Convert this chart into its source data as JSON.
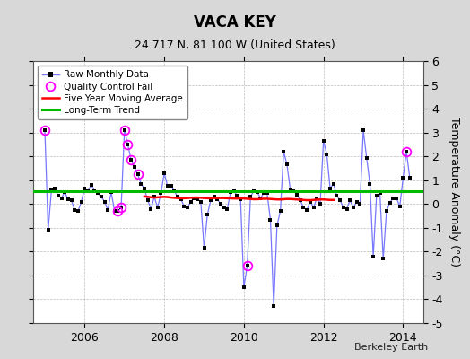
{
  "title": "VACA KEY",
  "subtitle": "24.717 N, 81.100 W (United States)",
  "ylabel": "Temperature Anomaly (°C)",
  "credit": "Berkeley Earth",
  "ylim": [
    -5,
    6
  ],
  "yticks": [
    -5,
    -4,
    -3,
    -2,
    -1,
    0,
    1,
    2,
    3,
    4,
    5,
    6
  ],
  "xlim_start": 2004.7,
  "xlim_end": 2014.5,
  "bg_color": "#d8d8d8",
  "plot_bg_color": "#ffffff",
  "raw_line_color": "#7777ff",
  "raw_marker_color": "#000000",
  "qc_fail_color": "#ff00ff",
  "moving_avg_color": "#ff0000",
  "trend_color": "#00bb00",
  "raw_data": [
    [
      2005.0,
      3.1
    ],
    [
      2005.083,
      -1.1
    ],
    [
      2005.167,
      0.6
    ],
    [
      2005.25,
      0.65
    ],
    [
      2005.333,
      0.35
    ],
    [
      2005.417,
      0.25
    ],
    [
      2005.5,
      0.5
    ],
    [
      2005.583,
      0.2
    ],
    [
      2005.667,
      0.15
    ],
    [
      2005.75,
      -0.25
    ],
    [
      2005.833,
      -0.3
    ],
    [
      2005.917,
      0.1
    ],
    [
      2006.0,
      0.65
    ],
    [
      2006.083,
      0.55
    ],
    [
      2006.167,
      0.8
    ],
    [
      2006.25,
      0.55
    ],
    [
      2006.333,
      0.45
    ],
    [
      2006.417,
      0.3
    ],
    [
      2006.5,
      0.1
    ],
    [
      2006.583,
      -0.25
    ],
    [
      2006.667,
      0.5
    ],
    [
      2006.75,
      -0.3
    ],
    [
      2006.833,
      -0.3
    ],
    [
      2006.917,
      -0.15
    ],
    [
      2007.0,
      3.1
    ],
    [
      2007.083,
      2.5
    ],
    [
      2007.167,
      1.85
    ],
    [
      2007.25,
      1.55
    ],
    [
      2007.333,
      1.25
    ],
    [
      2007.417,
      0.85
    ],
    [
      2007.5,
      0.65
    ],
    [
      2007.583,
      0.15
    ],
    [
      2007.667,
      -0.2
    ],
    [
      2007.75,
      0.3
    ],
    [
      2007.833,
      -0.15
    ],
    [
      2007.917,
      0.45
    ],
    [
      2008.0,
      1.3
    ],
    [
      2008.083,
      0.75
    ],
    [
      2008.167,
      0.75
    ],
    [
      2008.25,
      0.55
    ],
    [
      2008.333,
      0.3
    ],
    [
      2008.417,
      0.2
    ],
    [
      2008.5,
      -0.1
    ],
    [
      2008.583,
      -0.15
    ],
    [
      2008.667,
      0.1
    ],
    [
      2008.75,
      0.25
    ],
    [
      2008.833,
      0.2
    ],
    [
      2008.917,
      0.1
    ],
    [
      2009.0,
      -1.85
    ],
    [
      2009.083,
      -0.45
    ],
    [
      2009.167,
      0.15
    ],
    [
      2009.25,
      0.3
    ],
    [
      2009.333,
      0.2
    ],
    [
      2009.417,
      0.0
    ],
    [
      2009.5,
      -0.15
    ],
    [
      2009.583,
      -0.2
    ],
    [
      2009.667,
      0.5
    ],
    [
      2009.75,
      0.55
    ],
    [
      2009.833,
      0.35
    ],
    [
      2009.917,
      0.2
    ],
    [
      2010.0,
      -3.5
    ],
    [
      2010.083,
      -2.6
    ],
    [
      2010.167,
      0.3
    ],
    [
      2010.25,
      0.55
    ],
    [
      2010.333,
      0.5
    ],
    [
      2010.417,
      0.25
    ],
    [
      2010.5,
      0.45
    ],
    [
      2010.583,
      0.45
    ],
    [
      2010.667,
      -0.65
    ],
    [
      2010.75,
      -4.3
    ],
    [
      2010.833,
      -0.9
    ],
    [
      2010.917,
      -0.3
    ],
    [
      2011.0,
      2.2
    ],
    [
      2011.083,
      1.65
    ],
    [
      2011.167,
      0.6
    ],
    [
      2011.25,
      0.55
    ],
    [
      2011.333,
      0.4
    ],
    [
      2011.417,
      0.15
    ],
    [
      2011.5,
      -0.15
    ],
    [
      2011.583,
      -0.25
    ],
    [
      2011.667,
      0.1
    ],
    [
      2011.75,
      -0.15
    ],
    [
      2011.833,
      0.25
    ],
    [
      2011.917,
      0.0
    ],
    [
      2012.0,
      2.65
    ],
    [
      2012.083,
      2.1
    ],
    [
      2012.167,
      0.65
    ],
    [
      2012.25,
      0.85
    ],
    [
      2012.333,
      0.35
    ],
    [
      2012.417,
      0.15
    ],
    [
      2012.5,
      -0.15
    ],
    [
      2012.583,
      -0.2
    ],
    [
      2012.667,
      0.15
    ],
    [
      2012.75,
      -0.15
    ],
    [
      2012.833,
      0.1
    ],
    [
      2012.917,
      0.0
    ],
    [
      2013.0,
      3.1
    ],
    [
      2013.083,
      1.95
    ],
    [
      2013.167,
      0.85
    ],
    [
      2013.25,
      -2.2
    ],
    [
      2013.333,
      0.35
    ],
    [
      2013.417,
      0.45
    ],
    [
      2013.5,
      -2.3
    ],
    [
      2013.583,
      -0.3
    ],
    [
      2013.667,
      0.05
    ],
    [
      2013.75,
      0.25
    ],
    [
      2013.833,
      0.25
    ],
    [
      2013.917,
      -0.1
    ],
    [
      2014.0,
      1.1
    ],
    [
      2014.083,
      2.2
    ],
    [
      2014.167,
      1.1
    ]
  ],
  "qc_fail_points": [
    [
      2005.0,
      3.1
    ],
    [
      2006.833,
      -0.3
    ],
    [
      2006.917,
      -0.15
    ],
    [
      2007.0,
      3.1
    ],
    [
      2007.083,
      2.5
    ],
    [
      2007.167,
      1.85
    ],
    [
      2007.333,
      1.25
    ],
    [
      2010.083,
      -2.6
    ],
    [
      2014.083,
      2.2
    ]
  ],
  "moving_avg": [
    [
      2007.5,
      0.32
    ],
    [
      2007.583,
      0.3
    ],
    [
      2007.667,
      0.28
    ],
    [
      2007.75,
      0.27
    ],
    [
      2007.833,
      0.28
    ],
    [
      2007.917,
      0.29
    ],
    [
      2008.0,
      0.3
    ],
    [
      2008.083,
      0.29
    ],
    [
      2008.167,
      0.27
    ],
    [
      2008.25,
      0.26
    ],
    [
      2008.333,
      0.25
    ],
    [
      2008.417,
      0.24
    ],
    [
      2008.5,
      0.24
    ],
    [
      2008.583,
      0.25
    ],
    [
      2008.667,
      0.26
    ],
    [
      2008.75,
      0.27
    ],
    [
      2008.833,
      0.27
    ],
    [
      2008.917,
      0.26
    ],
    [
      2009.0,
      0.25
    ],
    [
      2009.083,
      0.24
    ],
    [
      2009.167,
      0.24
    ],
    [
      2009.25,
      0.25
    ],
    [
      2009.333,
      0.25
    ],
    [
      2009.417,
      0.25
    ],
    [
      2009.5,
      0.25
    ],
    [
      2009.583,
      0.24
    ],
    [
      2009.667,
      0.24
    ],
    [
      2009.75,
      0.23
    ],
    [
      2009.833,
      0.23
    ],
    [
      2009.917,
      0.24
    ],
    [
      2010.0,
      0.23
    ],
    [
      2010.083,
      0.22
    ],
    [
      2010.167,
      0.21
    ],
    [
      2010.25,
      0.2
    ],
    [
      2010.333,
      0.2
    ],
    [
      2010.417,
      0.21
    ],
    [
      2010.5,
      0.22
    ],
    [
      2010.583,
      0.22
    ],
    [
      2010.667,
      0.21
    ],
    [
      2010.75,
      0.2
    ],
    [
      2010.833,
      0.19
    ],
    [
      2010.917,
      0.19
    ],
    [
      2011.0,
      0.2
    ],
    [
      2011.083,
      0.21
    ],
    [
      2011.167,
      0.21
    ],
    [
      2011.25,
      0.2
    ],
    [
      2011.333,
      0.19
    ],
    [
      2011.417,
      0.18
    ],
    [
      2011.5,
      0.17
    ],
    [
      2011.583,
      0.16
    ],
    [
      2011.667,
      0.16
    ],
    [
      2011.75,
      0.17
    ],
    [
      2011.833,
      0.18
    ],
    [
      2011.917,
      0.19
    ],
    [
      2012.0,
      0.19
    ],
    [
      2012.083,
      0.18
    ],
    [
      2012.167,
      0.17
    ],
    [
      2012.25,
      0.17
    ]
  ],
  "trend_x": [
    2004.7,
    2014.5
  ],
  "trend_y": [
    0.55,
    0.55
  ],
  "xticks": [
    2006,
    2008,
    2010,
    2012,
    2014
  ]
}
